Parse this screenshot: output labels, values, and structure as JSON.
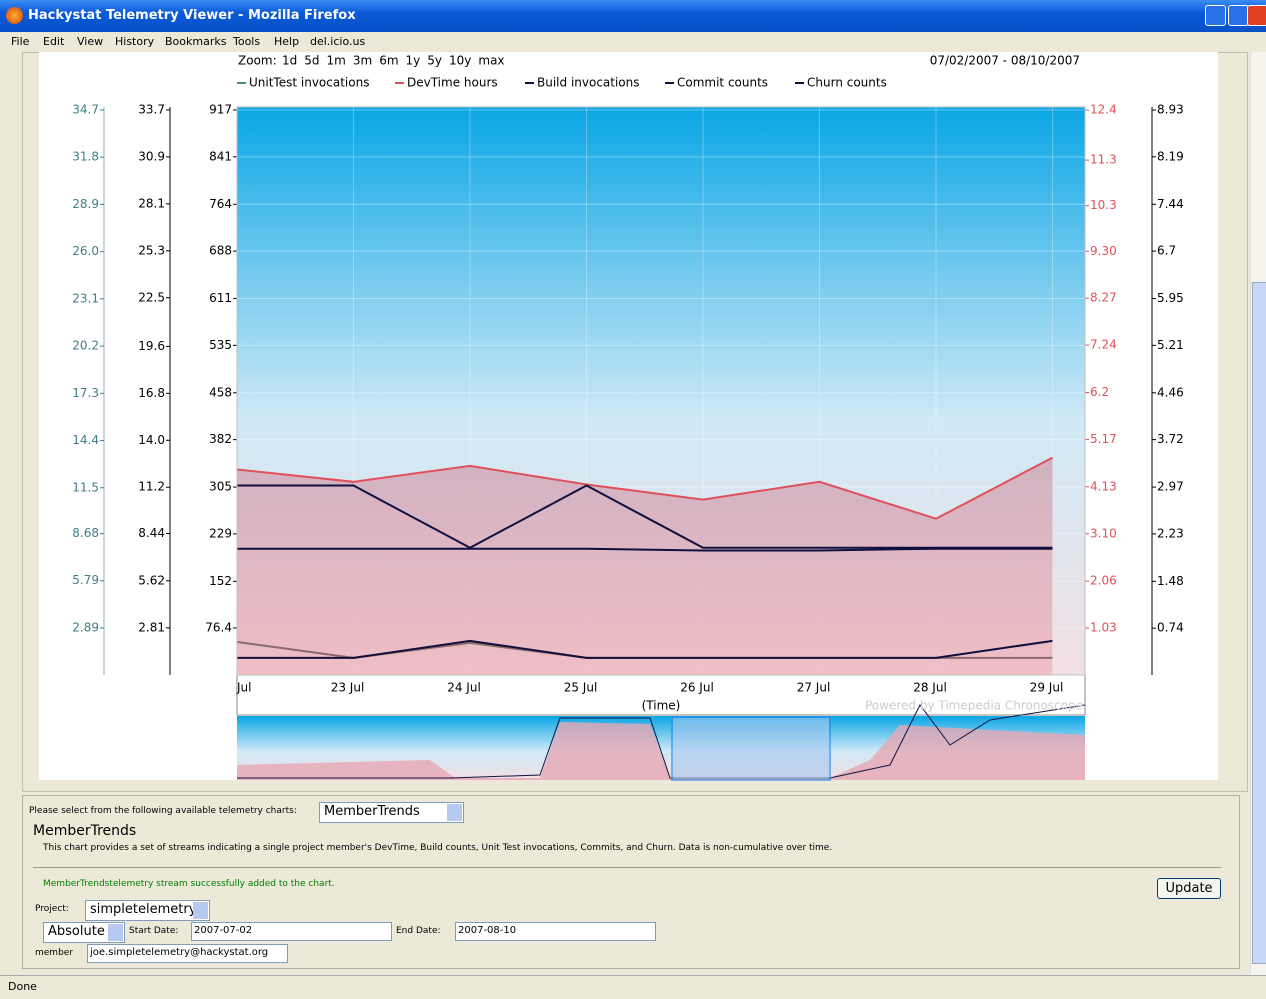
{
  "window": {
    "title": "Hackystat Telemetry Viewer - Mozilla Firefox",
    "menu": [
      "File",
      "Edit",
      "View",
      "History",
      "Bookmarks",
      "Tools",
      "Help",
      "del.icio.us"
    ],
    "status": "Done"
  },
  "chart_data": {
    "type": "line",
    "zoom_label": "Zoom:",
    "zoom_options": [
      "1d",
      "5d",
      "1m",
      "3m",
      "6m",
      "1y",
      "5y",
      "10y",
      "max"
    ],
    "date_range": "07/02/2007 - 08/10/2007",
    "x_label": "(Time)",
    "credit": "Powered by Timepedia Chronoscope",
    "categories": [
      "Jul",
      "23 Jul",
      "24 Jul",
      "25 Jul",
      "26 Jul",
      "27 Jul",
      "28 Jul",
      "29 Jul"
    ],
    "axes": [
      {
        "color": "#3f7f86",
        "ylim": [
          0,
          34.7
        ],
        "yticks": [
          2.89,
          5.79,
          8.68,
          11.5,
          14.4,
          17.3,
          20.2,
          23.1,
          {
            "value": 26,
            "label": "26.0"
          },
          28.9,
          31.8,
          34.7
        ]
      },
      {
        "color": "#000000",
        "ylim": [
          0,
          33.7
        ],
        "yticks": [
          2.81,
          5.62,
          8.44,
          11.2,
          {
            "value": 14,
            "label": "14.0"
          },
          16.8,
          19.6,
          22.5,
          25.3,
          28.1,
          30.9,
          33.7
        ]
      },
      {
        "color": "#000000",
        "ylim": [
          0,
          917
        ],
        "yticks": [
          76.4,
          152,
          229,
          305,
          382,
          458,
          535,
          611,
          688,
          764,
          841,
          917
        ]
      },
      {
        "color": "#e0505a",
        "ylim": [
          0,
          12.4
        ],
        "yticks": [
          1.03,
          2.06,
          {
            "value": 3.1,
            "label": "3.10"
          },
          4.13,
          5.17,
          6.2,
          7.24,
          8.27,
          {
            "value": 9.3,
            "label": "9.30"
          },
          10.3,
          11.3,
          12.4
        ]
      },
      {
        "color": "#000000",
        "ylim": [
          0,
          8.93
        ],
        "yticks": [
          0.74,
          1.48,
          2.23,
          2.97,
          3.72,
          4.46,
          5.21,
          5.95,
          6.7,
          7.44,
          8.19,
          8.93
        ]
      }
    ],
    "series": [
      {
        "name": "UnitTest invocations",
        "color": "#4a8a8a",
        "line_color": "#8a6a6a",
        "axis": 0,
        "values": [
          2.03,
          1.05,
          1.97,
          1.05,
          1.05,
          1.05,
          1.05,
          1.05
        ]
      },
      {
        "name": "DevTime hours",
        "color": "#e0505a",
        "axis": 3,
        "values": [
          4.51,
          4.24,
          4.59,
          4.18,
          3.85,
          4.24,
          3.43,
          4.77
        ]
      },
      {
        "name": "Build invocations",
        "color": "#101040",
        "axis": 1,
        "values": [
          11.3,
          11.3,
          7.59,
          11.3,
          7.59,
          7.59,
          7.59,
          7.59
        ]
      },
      {
        "name": "Commit counts",
        "color": "#101040",
        "axis": 2,
        "values": [
          205,
          205,
          205,
          205,
          202,
          202,
          205,
          205
        ]
      },
      {
        "name": "Churn counts",
        "color": "#101040",
        "axis": 4,
        "values": [
          0.27,
          0.27,
          0.54,
          0.27,
          0.27,
          0.27,
          0.27,
          0.54
        ]
      }
    ]
  },
  "form": {
    "select_prompt": "Please select from the following available telemetry charts:",
    "chart_choice": "MemberTrends",
    "heading": "MemberTrends",
    "description": "This chart provides a set of streams indicating a single project member's DevTime, Build counts, Unit Test invocations, Commits, and Churn. Data is non-cumulative over time.",
    "message": "MemberTrendstelemetry stream successfully added to the chart.",
    "update": "Update",
    "project_label": "Project:",
    "project": "simpletelemetry",
    "mode": "Absolute",
    "start_label": "Start Date:",
    "start": "2007-07-02",
    "end_label": "End Date:",
    "end": "2007-08-10",
    "member_label": "member",
    "member": "joe.simpletelemetry@hackystat.org"
  }
}
